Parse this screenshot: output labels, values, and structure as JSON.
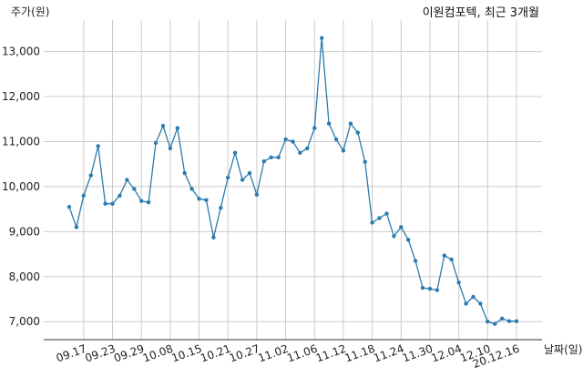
{
  "chart_data": {
    "type": "line",
    "title": "이원컴포텍, 최근 3개월",
    "ylabel": "주가(원)",
    "xlabel": "날짜(일)",
    "ylim": [
      6600,
      13700
    ],
    "yticks": [
      7000,
      8000,
      9000,
      10000,
      11000,
      12000,
      13000
    ],
    "ytick_labels": [
      "7,000",
      "8,000",
      "9,000",
      "10,000",
      "11,000",
      "12,000",
      "13,000"
    ],
    "xtick_labels": [
      "09.17",
      "09.23",
      "09.29",
      "10.08",
      "10.15",
      "10.21",
      "10.27",
      "11.02",
      "11.06",
      "11.12",
      "11.18",
      "11.24",
      "11.30",
      "12.04",
      "12.10",
      "20.12.16"
    ],
    "grid": true,
    "line_color": "#2b7bb0",
    "series": [
      {
        "values": [
          9550,
          9100,
          9800,
          10250,
          10900,
          9620,
          9620,
          9800,
          10150,
          9950,
          9680,
          9650,
          10970,
          11350,
          10850,
          11300,
          10300,
          9950,
          9730,
          9700,
          8870,
          9530,
          10200,
          10750,
          10150,
          10300,
          9820,
          10560,
          10650,
          10650,
          11050,
          11000,
          10750,
          10850,
          11300,
          13300,
          11400,
          11050,
          10800,
          11400,
          11200,
          10550,
          9200,
          9300,
          9400,
          8900,
          9100,
          8820,
          8350,
          7750,
          7730,
          7700,
          8470,
          8380,
          7870,
          7400,
          7550,
          7400,
          7000,
          6950,
          7070,
          7010,
          7010
        ]
      }
    ]
  }
}
